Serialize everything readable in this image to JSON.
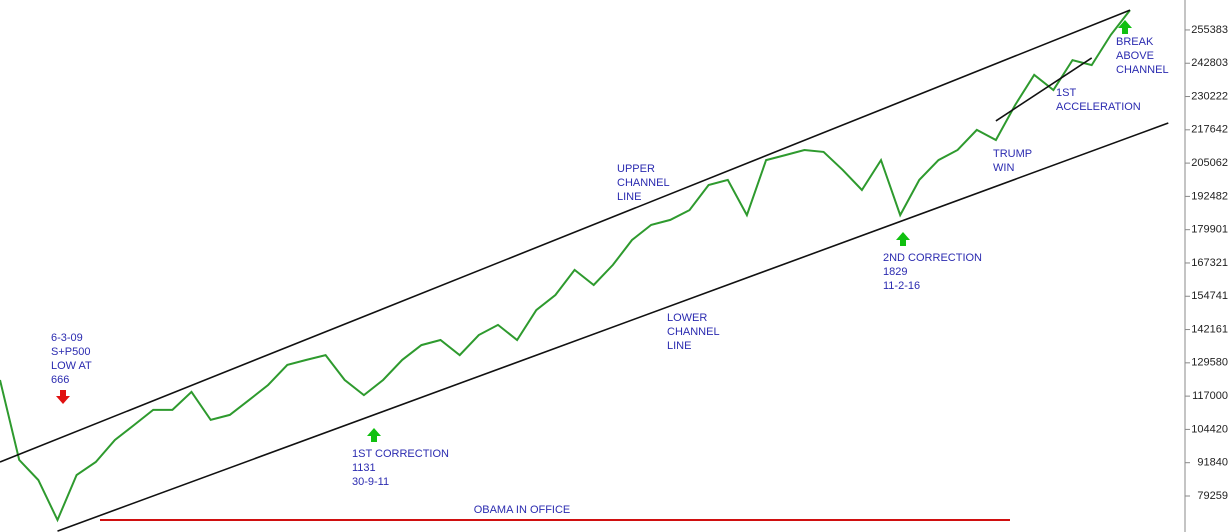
{
  "chart_data": {
    "type": "line",
    "color": "#2e9a2e",
    "values": [
      123100,
      92900,
      85300,
      70200,
      87200,
      92100,
      100400,
      106100,
      111800,
      111800,
      118600,
      108000,
      109900,
      115500,
      121200,
      128800,
      130700,
      132500,
      123100,
      117400,
      123100,
      130700,
      136300,
      138200,
      132500,
      140100,
      143900,
      138200,
      149500,
      155200,
      164700,
      159000,
      166600,
      176000,
      181700,
      183600,
      187300,
      196800,
      198700,
      185400,
      206200,
      208100,
      210000,
      209300,
      202500,
      194900,
      206200,
      185400,
      198700,
      206200,
      210000,
      217600,
      213800,
      227000,
      238400,
      232700,
      244000,
      242100,
      253500,
      262900
    ],
    "ylim": [
      65650,
      266700
    ],
    "yticks": [
      79259,
      91840,
      104420,
      117000,
      129580,
      142161,
      154741,
      167321,
      179901,
      192482,
      205062,
      217642,
      230222,
      242803,
      255383
    ],
    "trendlines": [
      {
        "x": [
          0,
          59
        ],
        "values": [
          92100,
          262900
        ]
      },
      {
        "x": [
          3,
          61
        ],
        "values": [
          66000,
          220200
        ]
      },
      {
        "x": [
          52,
          57
        ],
        "values": [
          221000,
          244800
        ]
      }
    ],
    "annotations": [
      {
        "lines": [
          "6-3-09",
          "S+P500",
          "LOW AT",
          "666"
        ]
      },
      {
        "lines": [
          "1ST CORRECTION",
          "1131",
          "30-9-11"
        ]
      },
      {
        "lines": [
          "UPPER",
          "CHANNEL",
          "LINE"
        ]
      },
      {
        "lines": [
          "LOWER",
          "CHANNEL",
          "LINE"
        ]
      },
      {
        "lines": [
          "2ND CORRECTION",
          "1829",
          "11-2-16"
        ]
      },
      {
        "lines": [
          "TRUMP",
          "WIN"
        ]
      },
      {
        "lines": [
          "1ST",
          "ACCELERATION"
        ]
      },
      {
        "lines": [
          "BREAK",
          "ABOVE",
          "CHANNEL"
        ]
      },
      {
        "lines": [
          "OBAMA IN OFFICE"
        ]
      }
    ]
  }
}
